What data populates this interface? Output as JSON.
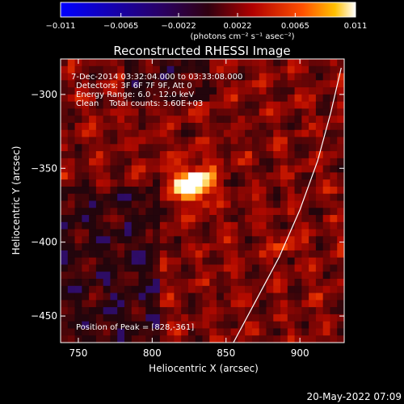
{
  "chart_data": {
    "type": "heatmap",
    "title": "Reconstructed RHESSI Image",
    "xlabel": "Heliocentric X (arcsec)",
    "ylabel": "Heliocentric Y (arcsec)",
    "xlim": [
      738,
      930
    ],
    "ylim": [
      -468,
      -276
    ],
    "x_ticks": [
      750,
      800,
      850,
      900
    ],
    "x_tick_labels": [
      "750",
      "800",
      "850",
      "900"
    ],
    "y_ticks": [
      -300,
      -350,
      -400,
      -450
    ],
    "y_tick_labels": [
      "-300",
      "-350",
      "-400",
      "-450"
    ],
    "colorbar": {
      "range": [
        -0.011,
        0.011
      ],
      "ticks": [
        -0.011,
        -0.0065,
        -0.0022,
        0.0022,
        0.0065,
        0.011
      ],
      "tick_labels": [
        "-0.011",
        "-0.0065",
        "-0.0022",
        "0.0022",
        "0.0065",
        "0.011"
      ],
      "label": "(photons cm⁻² s⁻¹ asec⁻²)"
    },
    "annotations": [
      "7-Dec-2014 03:32:04.000 to 03:33:08.000",
      "Detectors: 3F 6F 7F 9F, Att 0",
      "Energy Range: 6.0 - 12.0 keV",
      "Clean    Total counts: 3.60E+03"
    ],
    "peak": {
      "x": 828,
      "y": -361,
      "label": "Position of Peak = [828,-361]"
    },
    "limb_curve": [
      [
        855,
        -468
      ],
      [
        870,
        -440
      ],
      [
        886,
        -410
      ],
      [
        900,
        -378
      ],
      [
        912,
        -345
      ],
      [
        921,
        -312
      ],
      [
        928,
        -282
      ]
    ],
    "colors": {
      "background": "#000000",
      "limb": "#ffffff"
    }
  },
  "footer": {
    "timestamp": "20-May-2022 07:09"
  }
}
